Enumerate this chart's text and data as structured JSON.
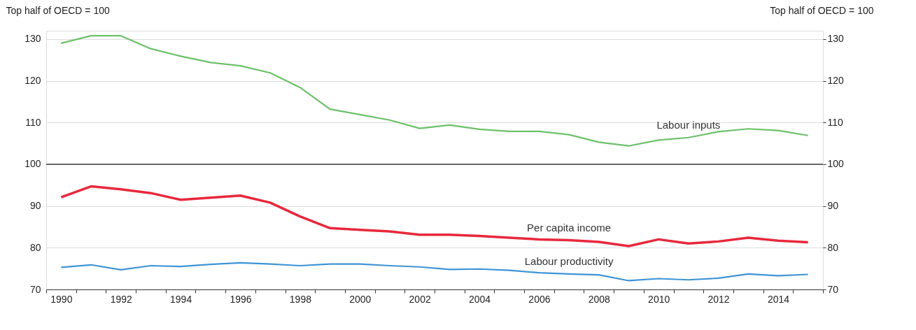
{
  "chart_data": {
    "type": "line",
    "ylabel": "Top half of OECD = 100",
    "y2label": "Top half of OECD = 100",
    "categories": [
      "1990",
      null,
      "1992",
      null,
      "1994",
      null,
      "1996",
      null,
      "1998",
      null,
      "2000",
      null,
      "2002",
      null,
      "2004",
      null,
      "2006",
      null,
      "2008",
      null,
      "2010",
      null,
      "2012",
      null,
      "2014",
      null
    ],
    "ylim": [
      70,
      132
    ],
    "yticks": [
      70,
      80,
      90,
      100,
      110,
      120,
      130
    ],
    "y2lim": [
      70,
      132
    ],
    "y2ticks": [
      70,
      80,
      90,
      100,
      110,
      120,
      130
    ],
    "grid": "y",
    "line_style": "solid",
    "marker": "none",
    "ref_lines": [
      {
        "axis": "y",
        "value": 100,
        "color": "#666666"
      }
    ],
    "series": [
      {
        "name": "Labour inputs",
        "color": "#6cc16a",
        "values": [
          129.0,
          130.8,
          130.8,
          127.7,
          125.9,
          124.4,
          123.6,
          121.9,
          118.4,
          113.2,
          111.9,
          110.6,
          108.6,
          109.4,
          108.4,
          107.9,
          107.9,
          107.1,
          105.3,
          104.4,
          105.8,
          106.4,
          107.8,
          108.5,
          108.1,
          106.9
        ]
      },
      {
        "name": "Per capita income",
        "color": "#e8283c",
        "values": [
          92.1,
          94.7,
          94.0,
          93.1,
          91.5,
          92.0,
          92.5,
          90.8,
          87.5,
          84.7,
          84.3,
          83.9,
          83.1,
          83.1,
          82.8,
          82.4,
          82.0,
          81.8,
          81.4,
          80.4,
          82.0,
          81.0,
          81.5,
          82.4,
          81.7,
          81.3
        ]
      },
      {
        "name": "Labour productivity",
        "color": "#3f94d6",
        "values": [
          75.3,
          75.9,
          74.7,
          75.7,
          75.5,
          76.0,
          76.4,
          76.1,
          75.7,
          76.1,
          76.1,
          75.7,
          75.4,
          74.8,
          74.9,
          74.6,
          74.0,
          73.7,
          73.5,
          72.1,
          72.6,
          72.3,
          72.7,
          73.7,
          73.3,
          73.6
        ]
      }
    ]
  }
}
